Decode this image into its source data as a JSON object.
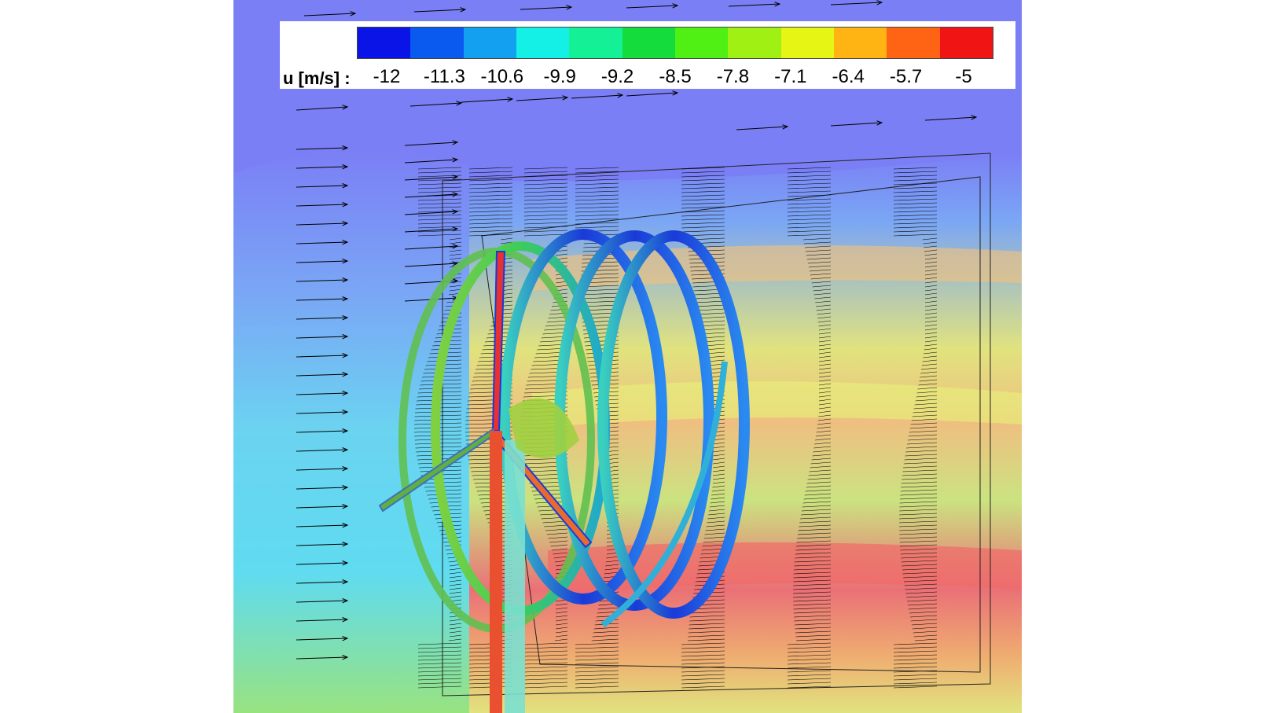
{
  "legend": {
    "title": "u [m/s] :",
    "ticks": [
      "-12",
      "-11.3",
      "-10.6",
      "-9.9",
      "-9.2",
      "-8.5",
      "-7.8",
      "-7.1",
      "-6.4",
      "-5.7",
      "-5"
    ],
    "colors": [
      "#0a14e6",
      "#0a5af0",
      "#14a0f0",
      "#14f0e6",
      "#14f096",
      "#14dc3c",
      "#50f014",
      "#a0f014",
      "#e6f514",
      "#ffb414",
      "#ff6414",
      "#f01414"
    ]
  },
  "colors": {
    "background_freestream": "#7b7ff5",
    "wake_light_blue": "#7aa8f5",
    "wake_cyan": "#5ee0f0",
    "wake_green": "#9ae87a",
    "wake_yellow": "#e6e878",
    "wake_orange": "#f5b06a",
    "wake_red": "#f07070",
    "vortex_blue": "#1a3ad8",
    "vortex_green": "#3ecc5a",
    "arrow": "#000000"
  }
}
